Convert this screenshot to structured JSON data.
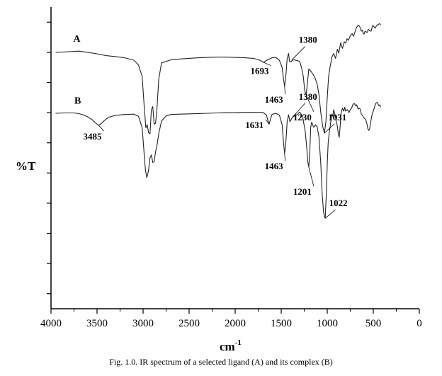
{
  "chart_data": {
    "type": "line",
    "caption": "Fig. 1.0. IR spectrum of a selected ligand (A) and its complex (B)",
    "xlabel": "cm",
    "xlabel_sup": "-1",
    "ylabel": "%T",
    "xlim": [
      4000,
      0
    ],
    "x_ticks": [
      4000,
      3500,
      3000,
      2500,
      2000,
      1500,
      1000,
      500,
      0
    ],
    "x_tick_labels": [
      "4000",
      "3500",
      "3000",
      "2500",
      "2000",
      "1500",
      "1000",
      "500",
      "0"
    ],
    "ylim": [
      0,
      100
    ],
    "y_ticks": [
      5,
      15,
      25,
      35,
      45,
      55,
      65,
      75,
      85,
      95
    ],
    "series": [
      {
        "name": "A",
        "points": [
          [
            3950,
            85
          ],
          [
            3800,
            85.2
          ],
          [
            3700,
            85.4
          ],
          [
            3600,
            85
          ],
          [
            3500,
            84.5
          ],
          [
            3400,
            83.9
          ],
          [
            3300,
            83.6
          ],
          [
            3200,
            83.2
          ],
          [
            3100,
            82.4
          ],
          [
            3050,
            80.8
          ],
          [
            3010,
            77
          ],
          [
            2990,
            68
          ],
          [
            2970,
            60
          ],
          [
            2955,
            61
          ],
          [
            2940,
            58.3
          ],
          [
            2925,
            58
          ],
          [
            2910,
            66
          ],
          [
            2895,
            67
          ],
          [
            2880,
            61.2
          ],
          [
            2865,
            61.5
          ],
          [
            2850,
            66
          ],
          [
            2830,
            76
          ],
          [
            2800,
            81.5
          ],
          [
            2700,
            82.5
          ],
          [
            2600,
            82.8
          ],
          [
            2500,
            83
          ],
          [
            2400,
            83.2
          ],
          [
            2300,
            83.3
          ],
          [
            2200,
            83.4
          ],
          [
            2100,
            83.4
          ],
          [
            2000,
            83.3
          ],
          [
            1900,
            83.2
          ],
          [
            1800,
            83
          ],
          [
            1740,
            82.5
          ],
          [
            1693,
            81.7
          ],
          [
            1650,
            82.5
          ],
          [
            1600,
            83.2
          ],
          [
            1560,
            83.3
          ],
          [
            1520,
            82.4
          ],
          [
            1490,
            80
          ],
          [
            1475,
            76
          ],
          [
            1463,
            73.8
          ],
          [
            1450,
            77
          ],
          [
            1435,
            83
          ],
          [
            1420,
            84.6
          ],
          [
            1410,
            82
          ],
          [
            1395,
            81.8
          ],
          [
            1380,
            82.4
          ],
          [
            1360,
            82.5
          ],
          [
            1330,
            82.3
          ],
          [
            1300,
            82
          ],
          [
            1280,
            80
          ],
          [
            1260,
            77
          ],
          [
            1245,
            72.5
          ],
          [
            1230,
            70.8
          ],
          [
            1215,
            75
          ],
          [
            1200,
            79.5
          ],
          [
            1185,
            79
          ],
          [
            1170,
            78.4
          ],
          [
            1150,
            77.5
          ],
          [
            1130,
            76.3
          ],
          [
            1110,
            74.5
          ],
          [
            1090,
            71
          ],
          [
            1070,
            65
          ],
          [
            1050,
            60.5
          ],
          [
            1031,
            58.2
          ],
          [
            1015,
            62
          ],
          [
            1000,
            70
          ],
          [
            985,
            77
          ],
          [
            970,
            80
          ],
          [
            950,
            83.4
          ],
          [
            930,
            84.6
          ],
          [
            910,
            83
          ],
          [
            890,
            86
          ],
          [
            875,
            84.7
          ],
          [
            855,
            88.2
          ],
          [
            835,
            86.3
          ],
          [
            815,
            88.5
          ],
          [
            800,
            88
          ],
          [
            785,
            89.5
          ],
          [
            770,
            89
          ],
          [
            750,
            90.5
          ],
          [
            730,
            91.2
          ],
          [
            715,
            90.3
          ],
          [
            700,
            91.6
          ],
          [
            685,
            93
          ],
          [
            670,
            93.8
          ],
          [
            660,
            94
          ],
          [
            650,
            93.6
          ],
          [
            640,
            93
          ],
          [
            630,
            92
          ],
          [
            620,
            92.4
          ],
          [
            610,
            91.4
          ],
          [
            600,
            91
          ],
          [
            590,
            92
          ],
          [
            580,
            91.8
          ],
          [
            565,
            91.6
          ],
          [
            555,
            92.6
          ],
          [
            540,
            92.2
          ],
          [
            525,
            92
          ],
          [
            515,
            93
          ],
          [
            505,
            94
          ],
          [
            495,
            93.6
          ],
          [
            480,
            93
          ],
          [
            465,
            93.8
          ],
          [
            450,
            94.2
          ],
          [
            430,
            94.5
          ],
          [
            420,
            94
          ]
        ]
      },
      {
        "name": "B",
        "points": [
          [
            3950,
            64.8
          ],
          [
            3850,
            64.9
          ],
          [
            3750,
            64.9
          ],
          [
            3700,
            64.7
          ],
          [
            3650,
            64.3
          ],
          [
            3600,
            63.6
          ],
          [
            3550,
            62.6
          ],
          [
            3520,
            61.7
          ],
          [
            3500,
            61.2
          ],
          [
            3485,
            60.9
          ],
          [
            3470,
            61
          ],
          [
            3450,
            61.5
          ],
          [
            3420,
            62.4
          ],
          [
            3380,
            63.4
          ],
          [
            3300,
            64.1
          ],
          [
            3200,
            64.4
          ],
          [
            3100,
            64.5
          ],
          [
            3050,
            63.8
          ],
          [
            3010,
            60
          ],
          [
            2990,
            52
          ],
          [
            2975,
            46
          ],
          [
            2960,
            43.5
          ],
          [
            2950,
            44.5
          ],
          [
            2940,
            46
          ],
          [
            2925,
            50
          ],
          [
            2910,
            51
          ],
          [
            2895,
            48.5
          ],
          [
            2880,
            48.7
          ],
          [
            2865,
            52
          ],
          [
            2850,
            54
          ],
          [
            2830,
            58
          ],
          [
            2800,
            62.2
          ],
          [
            2750,
            63.9
          ],
          [
            2700,
            64.4
          ],
          [
            2600,
            64.5
          ],
          [
            2500,
            64.6
          ],
          [
            2400,
            64.7
          ],
          [
            2300,
            64.8
          ],
          [
            2200,
            64.9
          ],
          [
            2100,
            65
          ],
          [
            2000,
            65
          ],
          [
            1900,
            65.1
          ],
          [
            1800,
            65.1
          ],
          [
            1700,
            65.1
          ],
          [
            1660,
            64.2
          ],
          [
            1645,
            62.5
          ],
          [
            1631,
            61.2
          ],
          [
            1615,
            63
          ],
          [
            1600,
            64.4
          ],
          [
            1560,
            64.8
          ],
          [
            1520,
            64.2
          ],
          [
            1490,
            61
          ],
          [
            1475,
            55
          ],
          [
            1463,
            51.5
          ],
          [
            1450,
            55
          ],
          [
            1435,
            62
          ],
          [
            1420,
            64.3
          ],
          [
            1405,
            62
          ],
          [
            1390,
            62.8
          ],
          [
            1380,
            63.4
          ],
          [
            1360,
            63.8
          ],
          [
            1340,
            64.1
          ],
          [
            1320,
            64.5
          ],
          [
            1300,
            65.2
          ],
          [
            1285,
            64.6
          ],
          [
            1270,
            64
          ],
          [
            1255,
            61.4
          ],
          [
            1240,
            59
          ],
          [
            1225,
            54
          ],
          [
            1210,
            48.5
          ],
          [
            1201,
            47
          ],
          [
            1190,
            51.5
          ],
          [
            1180,
            60
          ],
          [
            1170,
            61.8
          ],
          [
            1160,
            61.2
          ],
          [
            1150,
            60.2
          ],
          [
            1140,
            60.3
          ],
          [
            1130,
            61
          ],
          [
            1110,
            60.3
          ],
          [
            1090,
            57
          ],
          [
            1070,
            48
          ],
          [
            1055,
            38
          ],
          [
            1040,
            32
          ],
          [
            1030,
            30.5
          ],
          [
            1022,
            30
          ],
          [
            1010,
            38
          ],
          [
            1000,
            48
          ],
          [
            990,
            55
          ],
          [
            980,
            58
          ],
          [
            970,
            60
          ],
          [
            960,
            62.5
          ],
          [
            950,
            64.5
          ],
          [
            940,
            63.8
          ],
          [
            930,
            66
          ],
          [
            915,
            64
          ],
          [
            900,
            62
          ],
          [
            890,
            60.4
          ],
          [
            880,
            58
          ],
          [
            870,
            56.8
          ],
          [
            860,
            60.5
          ],
          [
            850,
            64.8
          ],
          [
            835,
            66.5
          ],
          [
            820,
            65.5
          ],
          [
            810,
            66.8
          ],
          [
            800,
            65.5
          ],
          [
            780,
            66
          ],
          [
            765,
            65
          ],
          [
            750,
            66
          ],
          [
            735,
            66.5
          ],
          [
            720,
            67.8
          ],
          [
            705,
            68
          ],
          [
            690,
            67.2
          ],
          [
            680,
            67.6
          ],
          [
            665,
            66.2
          ],
          [
            650,
            66.5
          ],
          [
            640,
            66
          ],
          [
            630,
            64.5
          ],
          [
            615,
            64
          ],
          [
            600,
            63.2
          ],
          [
            590,
            63
          ],
          [
            580,
            62.5
          ],
          [
            570,
            61.4
          ],
          [
            560,
            59.8
          ],
          [
            550,
            59.1
          ],
          [
            540,
            59.6
          ],
          [
            530,
            61.5
          ],
          [
            520,
            63.3
          ],
          [
            510,
            64.8
          ],
          [
            500,
            65.5
          ],
          [
            490,
            66.5
          ],
          [
            480,
            67.5
          ],
          [
            470,
            68.2
          ],
          [
            460,
            68.4
          ],
          [
            450,
            68
          ],
          [
            440,
            67.3
          ],
          [
            430,
            67.6
          ],
          [
            420,
            66.8
          ]
        ]
      }
    ],
    "annotations": [
      {
        "series": "A",
        "text": "1693",
        "x": 1693,
        "y": 81.7,
        "tx": 1735,
        "ty": 77.8
      },
      {
        "series": "A",
        "text": "1380",
        "x": 1385,
        "y": 82.5,
        "tx": 1210,
        "ty": 88.1
      },
      {
        "series": "A",
        "text": "1463",
        "x": 1463,
        "y": 73.8,
        "tx": 1580,
        "ty": 68.3
      },
      {
        "series": "A",
        "text": "1230",
        "x": 1230,
        "y": 70.8,
        "tx": 1270,
        "ty": 62.5
      },
      {
        "series": "A",
        "text": "1031",
        "x": 1031,
        "y": 58.2,
        "tx": 890,
        "ty": 62.5
      },
      {
        "series": "B",
        "text": "3485",
        "x": 3485,
        "y": 60.9,
        "tx": 3550,
        "ty": 56.1
      },
      {
        "series": "B",
        "text": "1631",
        "x": 1631,
        "y": 61.2,
        "tx": 1790,
        "ty": 59.9
      },
      {
        "series": "B",
        "text": "1380",
        "x": 1380,
        "y": 63.4,
        "tx": 1210,
        "ty": 69.3
      },
      {
        "series": "B",
        "text": "1463",
        "x": 1463,
        "y": 51.5,
        "tx": 1580,
        "ty": 46.2
      },
      {
        "series": "B",
        "text": "1201",
        "x": 1201,
        "y": 47,
        "tx": 1270,
        "ty": 37.8
      },
      {
        "series": "B",
        "text": "1022",
        "x": 1022,
        "y": 30,
        "tx": 880,
        "ty": 34
      }
    ],
    "series_labels": [
      {
        "text": "A",
        "x": 3720,
        "y": 88.5
      },
      {
        "text": "B",
        "x": 3710,
        "y": 67.9
      }
    ]
  }
}
